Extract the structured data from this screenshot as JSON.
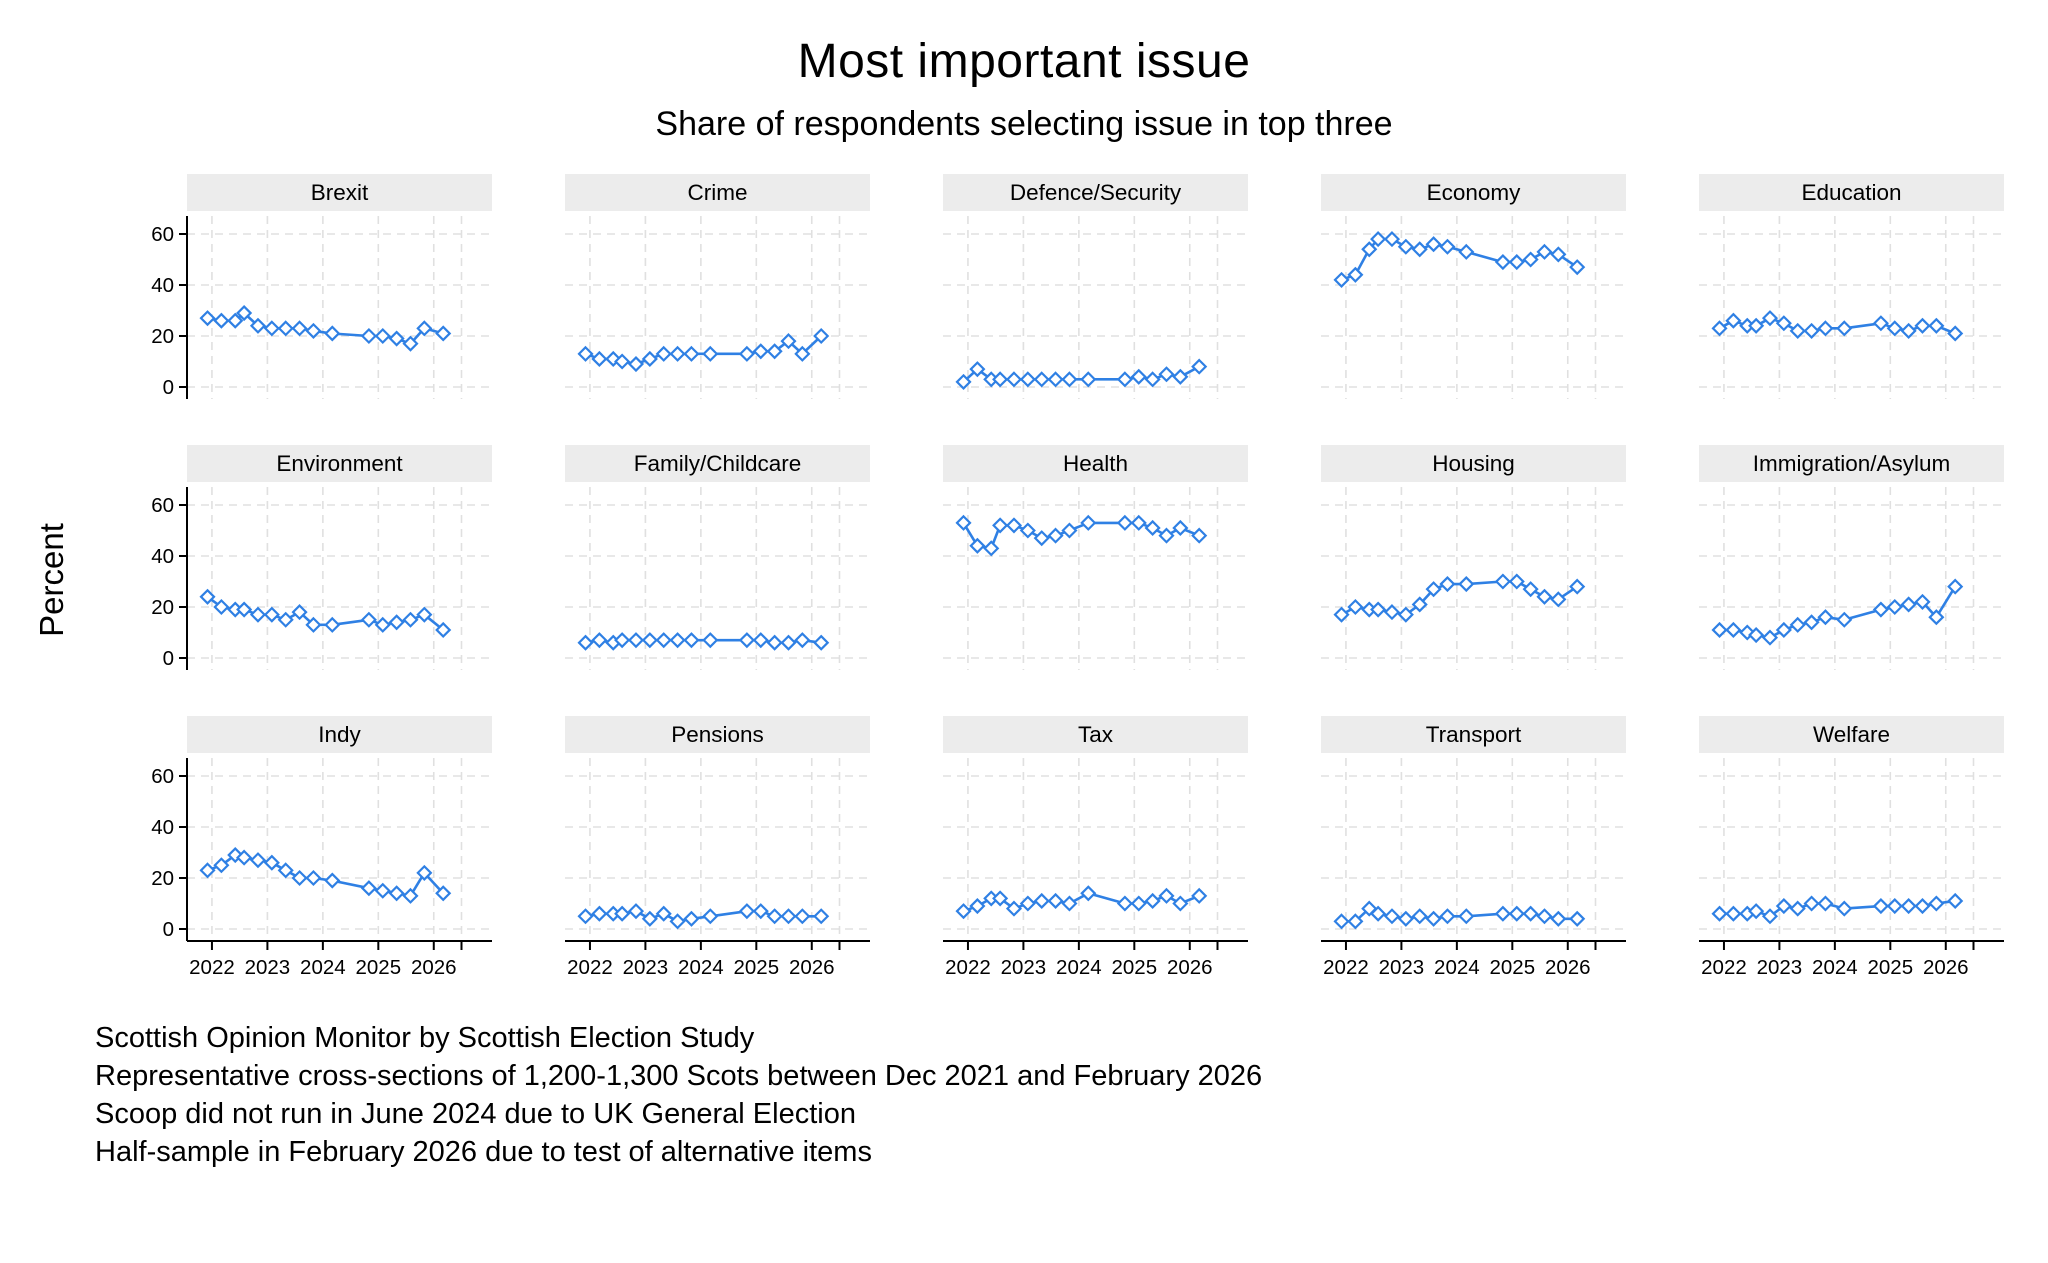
{
  "title": "Most important issue",
  "subtitle": "Share of respondents selecting issue in top three",
  "ylabel": "Percent",
  "footnotes": [
    "Scottish Opinion Monitor by Scottish Election Study",
    "Representative cross-sections of 1,200-1,300 Scots between Dec 2021 and February 2026",
    "Scoop did not run in June 2024 due to UK General Election",
    "Half-sample in February 2026 due to test of alternative items"
  ],
  "colors": {
    "accent": "#2f80e4",
    "marker_fill": "#ffffff",
    "header_bg": "#ececec",
    "grid": "#e0e0e0",
    "axis": "#000000"
  },
  "chart_data": {
    "type": "line",
    "layout": "small-multiples 5 cols x 3 rows, shared axes",
    "marker": "hollow-diamond",
    "grid": "dashed horizontal and vertical gridlines",
    "ylim": [
      0,
      60
    ],
    "y_ticks": [
      0,
      20,
      40,
      60
    ],
    "x_ticks": [
      2022,
      2023,
      2024,
      2025,
      2026
    ],
    "x_minor_tick": 2026.5,
    "x_tick_labels": [
      "2022",
      "2023",
      "2024",
      "2025",
      "2026"
    ],
    "xlim": [
      2021.55,
      2027.05
    ],
    "x": [
      2021.92,
      2022.17,
      2022.42,
      2022.58,
      2022.83,
      2023.08,
      2023.33,
      2023.58,
      2023.83,
      2024.17,
      2024.83,
      2025.08,
      2025.33,
      2025.58,
      2025.83,
      2026.17
    ],
    "series": [
      {
        "name": "Brexit",
        "values": [
          27,
          26,
          26,
          29,
          24,
          23,
          23,
          23,
          22,
          21,
          20,
          20,
          19,
          17,
          23,
          21
        ]
      },
      {
        "name": "Crime",
        "values": [
          13,
          11,
          11,
          10,
          9,
          11,
          13,
          13,
          13,
          13,
          13,
          14,
          14,
          18,
          13,
          20
        ]
      },
      {
        "name": "Defence/Security",
        "values": [
          2,
          7,
          3,
          3,
          3,
          3,
          3,
          3,
          3,
          3,
          3,
          4,
          3,
          5,
          4,
          8
        ]
      },
      {
        "name": "Economy",
        "values": [
          42,
          44,
          54,
          58,
          58,
          55,
          54,
          56,
          55,
          53,
          49,
          49,
          50,
          53,
          52,
          47
        ]
      },
      {
        "name": "Education",
        "values": [
          23,
          26,
          24,
          24,
          27,
          25,
          22,
          22,
          23,
          23,
          25,
          23,
          22,
          24,
          24,
          21
        ]
      },
      {
        "name": "Environment",
        "values": [
          24,
          20,
          19,
          19,
          17,
          17,
          15,
          18,
          13,
          13,
          15,
          13,
          14,
          15,
          17,
          11
        ]
      },
      {
        "name": "Family/Childcare",
        "values": [
          6,
          7,
          6,
          7,
          7,
          7,
          7,
          7,
          7,
          7,
          7,
          7,
          6,
          6,
          7,
          6
        ]
      },
      {
        "name": "Health",
        "values": [
          53,
          44,
          43,
          52,
          52,
          50,
          47,
          48,
          50,
          53,
          53,
          53,
          51,
          48,
          51,
          48
        ]
      },
      {
        "name": "Housing",
        "values": [
          17,
          20,
          19,
          19,
          18,
          17,
          21,
          27,
          29,
          29,
          30,
          30,
          27,
          24,
          23,
          28
        ]
      },
      {
        "name": "Immigration/Asylum",
        "values": [
          11,
          11,
          10,
          9,
          8,
          11,
          13,
          14,
          16,
          15,
          19,
          20,
          21,
          22,
          16,
          28
        ]
      },
      {
        "name": "Indy",
        "values": [
          23,
          25,
          29,
          28,
          27,
          26,
          23,
          20,
          20,
          19,
          16,
          15,
          14,
          13,
          22,
          14
        ]
      },
      {
        "name": "Pensions",
        "values": [
          5,
          6,
          6,
          6,
          7,
          4,
          6,
          3,
          4,
          5,
          7,
          7,
          5,
          5,
          5,
          5
        ]
      },
      {
        "name": "Tax",
        "values": [
          7,
          9,
          12,
          12,
          8,
          10,
          11,
          11,
          10,
          14,
          10,
          10,
          11,
          13,
          10,
          13
        ]
      },
      {
        "name": "Transport",
        "values": [
          3,
          3,
          8,
          6,
          5,
          4,
          5,
          4,
          5,
          5,
          6,
          6,
          6,
          5,
          4,
          4
        ]
      },
      {
        "name": "Welfare",
        "values": [
          6,
          6,
          6,
          7,
          5,
          9,
          8,
          10,
          10,
          8,
          9,
          9,
          9,
          9,
          10,
          11
        ]
      }
    ]
  }
}
